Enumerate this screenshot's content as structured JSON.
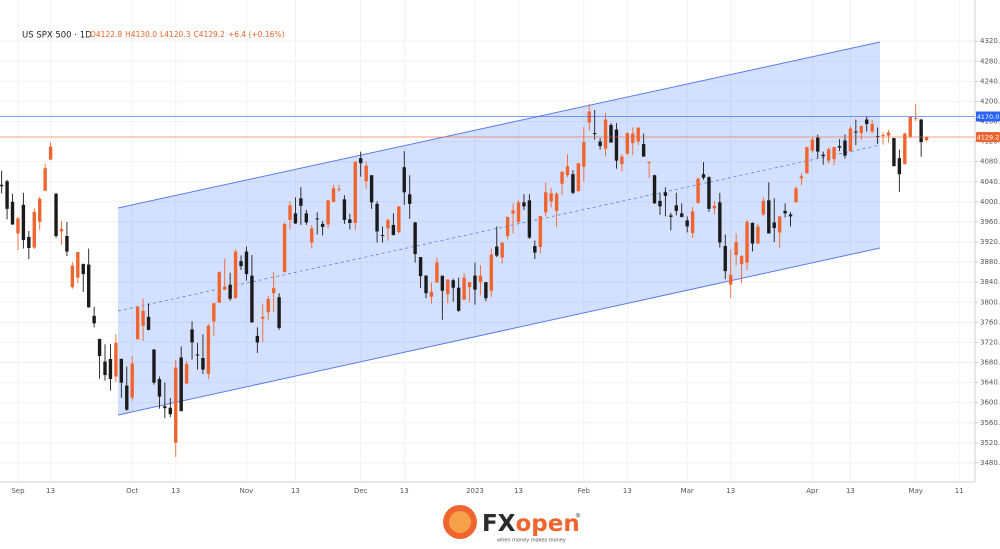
{
  "chart_data": {
    "type": "candlestick",
    "title": "US SPX 500 · 1D",
    "ohlc": [
      "O4122.8",
      "H4130.0",
      "L4120.3",
      "C4129.2",
      "+6.4 (+0.16%)"
    ],
    "up_color": "#f0652f",
    "down_color": "#1b1b1b",
    "grid": true,
    "open": [
      4034,
      4041,
      4000,
      3937,
      3994,
      3930,
      3909,
      3960,
      4022,
      4084,
      4016,
      3941,
      3932,
      3830,
      3849,
      3876,
      3875,
      3773,
      3727,
      3682,
      3687,
      3652,
      3687,
      3634,
      3610,
      3726,
      3753,
      3771,
      3706,
      3647,
      3593,
      3590,
      3520,
      3690,
      3638,
      3746,
      3696,
      3689,
      3657,
      3762,
      3799,
      3825,
      3835,
      3808,
      3882,
      3901,
      3853,
      3733,
      3767,
      3780,
      3818,
      3810,
      3860,
      3964,
      3977,
      4007,
      3977,
      3919,
      3967,
      3956,
      3955,
      4000,
      4024,
      4005,
      3965,
      3958,
      4087,
      4041,
      4053,
      3996,
      3934,
      3947,
      3954,
      3940,
      4069,
      4015,
      3959,
      3890,
      3853,
      3811,
      3839,
      3853,
      3816,
      3844,
      3829,
      3805,
      3830,
      3853,
      3840,
      3840,
      3823,
      3911,
      3889,
      3932,
      3977,
      3960,
      3999,
      4003,
      3912,
      3910,
      3979,
      4001,
      3982,
      4036,
      4053,
      4055,
      4021,
      4070,
      4158,
      4137,
      4120,
      4106,
      4153,
      4144,
      4075,
      4096,
      4117,
      4120,
      4115,
      4077,
      4053,
      4002,
      4019,
      3973,
      3993,
      3977,
      3963,
      3938,
      3998,
      4055,
      4049,
      3987,
      3999,
      3912,
      3835,
      3894,
      3876,
      3879,
      3958,
      3917,
      3975,
      4003,
      3959,
      3939,
      3982,
      3975,
      3999,
      4047,
      4057,
      4102,
      4128,
      4094,
      4082,
      4085,
      4111,
      4122,
      4101,
      4140,
      4137,
      4164,
      4140,
      4131,
      4133,
      4132,
      4127,
      4087,
      4075,
      4130,
      4166,
      4164,
      4122.8
    ],
    "high": [
      4062,
      4044,
      4016,
      3970,
      4018,
      3942,
      3987,
      4010,
      4076,
      4119,
      4018,
      3962,
      3960,
      3880,
      3900,
      3877,
      3907,
      3791,
      3727,
      3716,
      3717,
      3736,
      3688,
      3672,
      3693,
      3793,
      3807,
      3798,
      3706,
      3652,
      3640,
      3609,
      3685,
      3712,
      3683,
      3762,
      3719,
      3736,
      3757,
      3799,
      3862,
      3887,
      3859,
      3905,
      3893,
      3911,
      3894,
      3750,
      3796,
      3813,
      3860,
      3818,
      3959,
      4001,
      4009,
      4029,
      3984,
      3954,
      3979,
      3962,
      4004,
      4034,
      4034,
      4013,
      3976,
      4080,
      4100,
      4080,
      4053,
      4001,
      3951,
      3966,
      3977,
      3991,
      4101,
      4053,
      3960,
      3890,
      3854,
      3839,
      3889,
      3853,
      3846,
      3847,
      3849,
      3858,
      3840,
      3879,
      3874,
      3840,
      3907,
      3951,
      3919,
      3970,
      3997,
      4003,
      4015,
      4015,
      3923,
      3972,
      4039,
      4028,
      4019,
      4061,
      4095,
      4063,
      4077,
      4149,
      4195,
      4183,
      4127,
      4177,
      4157,
      4157,
      4095,
      4138,
      4148,
      4148,
      4136,
      4081,
      4054,
      4018,
      4029,
      3978,
      4018,
      3997,
      3971,
      3990,
      4048,
      4079,
      4051,
      4002,
      4018,
      3935,
      3905,
      3937,
      3894,
      3964,
      3959,
      3956,
      4009,
      4039,
      4007,
      3972,
      3997,
      3980,
      4031,
      4057,
      4110,
      4128,
      4134,
      4100,
      4108,
      4110,
      4125,
      4134,
      4151,
      4164,
      4152,
      4170,
      4163,
      4148,
      4138,
      4143,
      4127,
      4104,
      4138,
      4170,
      4195,
      4165,
      4130
    ],
    "low": [
      4017,
      3965,
      3954,
      3904,
      3907,
      3886,
      3906,
      3944,
      4022,
      4084,
      3928,
      3914,
      3892,
      3827,
      3838,
      3820,
      3789,
      3750,
      3648,
      3644,
      3624,
      3641,
      3610,
      3584,
      3604,
      3726,
      3723,
      3744,
      3636,
      3588,
      3569,
      3571,
      3492,
      3584,
      3638,
      3686,
      3666,
      3657,
      3647,
      3733,
      3799,
      3824,
      3803,
      3808,
      3864,
      3843,
      3759,
      3699,
      3721,
      3764,
      3781,
      3745,
      3860,
      3945,
      3956,
      3954,
      3954,
      3907,
      3935,
      3933,
      3947,
      3999,
      4020,
      3956,
      3945,
      3944,
      4050,
      4026,
      3986,
      3919,
      3919,
      3923,
      3933,
      3937,
      3994,
      3966,
      3879,
      3828,
      3808,
      3797,
      3839,
      3765,
      3798,
      3801,
      3781,
      3805,
      3801,
      3795,
      3814,
      3802,
      3810,
      3890,
      3877,
      3925,
      3937,
      3955,
      3984,
      3926,
      3886,
      3897,
      3972,
      3989,
      3950,
      4013,
      4049,
      4015,
      4021,
      4040,
      4142,
      4124,
      4104,
      4091,
      4118,
      4066,
      4061,
      4093,
      4093,
      4113,
      4091,
      4047,
      3996,
      3974,
      3971,
      3943,
      3973,
      3969,
      3939,
      3928,
      3996,
      4044,
      3980,
      3975,
      3909,
      3846,
      3808,
      3873,
      3838,
      3864,
      3901,
      3916,
      3972,
      3937,
      3920,
      3909,
      3969,
      3951,
      3999,
      4033,
      4056,
      4098,
      4087,
      4074,
      4076,
      4073,
      4101,
      4086,
      4099,
      4113,
      4123,
      4140,
      4136,
      4115,
      4114,
      4118,
      4071,
      4020,
      4075,
      4127,
      4161,
      4090,
      4120.3
    ],
    "close": [
      4031,
      3986,
      3955,
      3967,
      3924,
      3908,
      3980,
      4006,
      4067,
      4110,
      3932,
      3946,
      3901,
      3873,
      3900,
      3856,
      3790,
      3758,
      3693,
      3655,
      3647,
      3719,
      3640,
      3586,
      3678,
      3791,
      3783,
      3745,
      3640,
      3612,
      3589,
      3577,
      3670,
      3583,
      3677,
      3720,
      3695,
      3666,
      3753,
      3798,
      3860,
      3831,
      3807,
      3901,
      3872,
      3856,
      3760,
      3720,
      3771,
      3807,
      3828,
      3749,
      3956,
      3993,
      3957,
      3992,
      3959,
      3947,
      3965,
      3950,
      4003,
      4027,
      4026,
      3964,
      3958,
      4080,
      4077,
      4072,
      3999,
      3941,
      3933,
      3964,
      3934,
      3991,
      4019,
      3996,
      3896,
      3852,
      3818,
      3821,
      3879,
      3823,
      3845,
      3829,
      3783,
      3849,
      3840,
      3825,
      3853,
      3808,
      3895,
      3893,
      3919,
      3970,
      3983,
      3999,
      3991,
      3929,
      3899,
      3972,
      4019,
      4017,
      4016,
      4060,
      4071,
      4018,
      4077,
      4119,
      4180,
      4136,
      4111,
      4164,
      4118,
      4082,
      4090,
      4137,
      4136,
      4148,
      4090,
      4079,
      3997,
      3991,
      4012,
      3970,
      3982,
      3970,
      3951,
      3981,
      4046,
      4048,
      3986,
      3992,
      3919,
      3862,
      3855,
      3920,
      3892,
      3960,
      3917,
      3951,
      4002,
      3937,
      3948,
      3971,
      3977,
      3971,
      4027,
      4051,
      4109,
      4124,
      4100,
      4091,
      4105,
      4109,
      4108,
      4092,
      4146,
      4138,
      4151,
      4155,
      4155,
      4130,
      4133,
      4138,
      4071,
      4055,
      4136,
      4169,
      4167,
      4119,
      4129.2
    ],
    "xlim": [
      -0.3,
      178.9
    ],
    "xticks": [
      {
        "value": 3,
        "label": "Sep"
      },
      {
        "value": 9,
        "label": "13"
      },
      {
        "value": 24,
        "label": "Oct"
      },
      {
        "value": 32,
        "label": "13"
      },
      {
        "value": 45,
        "label": "Nov"
      },
      {
        "value": 54,
        "label": "13"
      },
      {
        "value": 66,
        "label": "Dec"
      },
      {
        "value": 74,
        "label": "13"
      },
      {
        "value": 87,
        "label": "2023"
      },
      {
        "value": 95,
        "label": "13"
      },
      {
        "value": 107,
        "label": "Feb"
      },
      {
        "value": 115,
        "label": "13"
      },
      {
        "value": 126,
        "label": "Mar"
      },
      {
        "value": 134,
        "label": "13"
      },
      {
        "value": 149,
        "label": "Apr"
      },
      {
        "value": 156,
        "label": "13"
      },
      {
        "value": 168,
        "label": "May"
      },
      {
        "value": 176,
        "label": "11"
      }
    ],
    "ylim": [
      3442,
      4402
    ],
    "yticks": [
      {
        "value": 3480,
        "label": "3480.0"
      },
      {
        "value": 3520,
        "label": "3520.0"
      },
      {
        "value": 3560,
        "label": "3560.0"
      },
      {
        "value": 3600,
        "label": "3600.0"
      },
      {
        "value": 3640,
        "label": "3640.0"
      },
      {
        "value": 3680,
        "label": "3680.0"
      },
      {
        "value": 3720,
        "label": "3720.0"
      },
      {
        "value": 3760,
        "label": "3760.0"
      },
      {
        "value": 3800,
        "label": "3800.0"
      },
      {
        "value": 3840,
        "label": "3840.0"
      },
      {
        "value": 3880,
        "label": "3880.0"
      },
      {
        "value": 3920,
        "label": "3920.0"
      },
      {
        "value": 3960,
        "label": "3960.0"
      },
      {
        "value": 4000,
        "label": "4000.0"
      },
      {
        "value": 4040,
        "label": "4040.0"
      },
      {
        "value": 4080,
        "label": "4080.0"
      },
      {
        "value": 4120,
        "label": "4120.0"
      },
      {
        "value": 4160,
        "label": "4160.0"
      },
      {
        "value": 4200,
        "label": "4200.0"
      },
      {
        "value": 4240,
        "label": "4240.0"
      },
      {
        "value": 4280,
        "label": "4280.0"
      },
      {
        "value": 4320,
        "label": "4320.0"
      }
    ],
    "hlines": [
      {
        "value": 4170,
        "label": "4170.0",
        "color": "#2962ff"
      },
      {
        "value": 4129.2,
        "label": "4129.2",
        "color": "#f0652f"
      }
    ]
  },
  "logo": {
    "brand": "FX",
    "brand_accent": "open",
    "mark": "®",
    "tagline": "when money makes money"
  }
}
